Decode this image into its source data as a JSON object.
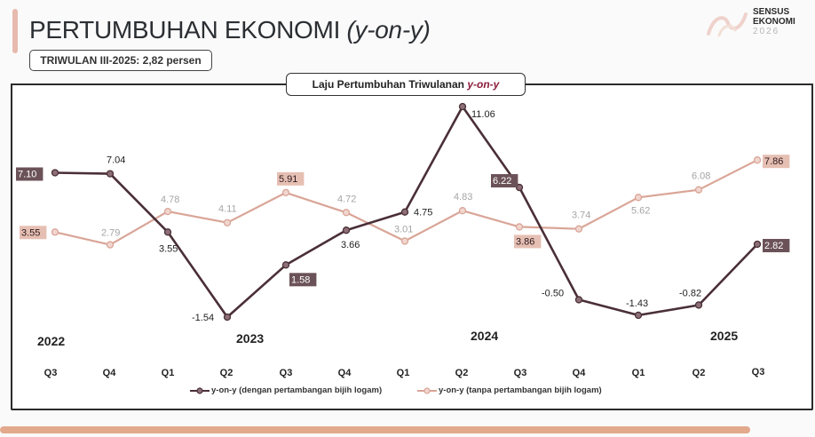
{
  "header": {
    "title_main": "PERTUMBUHAN EKONOMI ",
    "title_italic": "(y-on-y)",
    "badge": "TRIWULAN III-2025: 2,82 persen"
  },
  "logo": {
    "line1": "SENSUS",
    "line2": "EKONOMI",
    "line3": "2026"
  },
  "chart_data": {
    "type": "line",
    "title": "Laju Pertumbuhan Triwulanan y-on-y",
    "title_main": "Laju Pertumbuhan Triwulanan ",
    "title_italic": "y-on-y",
    "categories": [
      "2022 Q3",
      "2022 Q4",
      "2023 Q1",
      "2023 Q2",
      "2023 Q3",
      "2023 Q4",
      "2024 Q1",
      "2024 Q2",
      "2024 Q3",
      "2024 Q4",
      "2025 Q1",
      "2025 Q2",
      "2025 Q3"
    ],
    "quarter_labels": [
      "Q3",
      "Q4",
      "Q1",
      "Q2",
      "Q3",
      "Q4",
      "Q1",
      "Q2",
      "Q3",
      "Q4",
      "Q1",
      "Q2",
      "Q3"
    ],
    "year_labels": [
      "2022",
      "2023",
      "2024",
      "2025"
    ],
    "series": [
      {
        "name": "y-on-y (dengan pertambangan bijih logam)",
        "color": "#4a2f37",
        "values": [
          7.1,
          7.04,
          3.55,
          -1.54,
          1.58,
          3.66,
          4.75,
          11.06,
          6.22,
          -0.5,
          -1.43,
          -0.82,
          2.82
        ],
        "labels": [
          "7.10",
          "7.04",
          "3.55",
          "-1.54",
          "1.58",
          "3.66",
          "4.75",
          "11.06",
          "6.22",
          "-0.50",
          "-1.43",
          "-0.82",
          "2.82"
        ]
      },
      {
        "name": "y-on-y (tanpa pertambangan bijih logam)",
        "color": "#d9a597",
        "values": [
          3.55,
          2.79,
          4.78,
          4.11,
          5.91,
          4.72,
          3.01,
          4.83,
          3.86,
          3.74,
          5.62,
          6.08,
          7.86
        ],
        "labels": [
          "3.55",
          "2.79",
          "4.78",
          "4.11",
          "5.91",
          "4.72",
          "3.01",
          "4.83",
          "3.86",
          "3.74",
          "5.62",
          "6.08",
          "7.86"
        ]
      }
    ],
    "xlabel": "",
    "ylabel": "",
    "grid": false,
    "legend_position": "bottom"
  },
  "legend": {
    "item1": "y-on-y (dengan pertambangan bijih logam)",
    "item2": "y-on-y (tanpa pertambangan bijih logam)"
  },
  "colors": {
    "series1": "#4a2f37",
    "series2": "#d9a597",
    "accent": "#e8b9ae",
    "bottom_bar": "#e2a98d",
    "title_italic": "#8a1c3a"
  }
}
